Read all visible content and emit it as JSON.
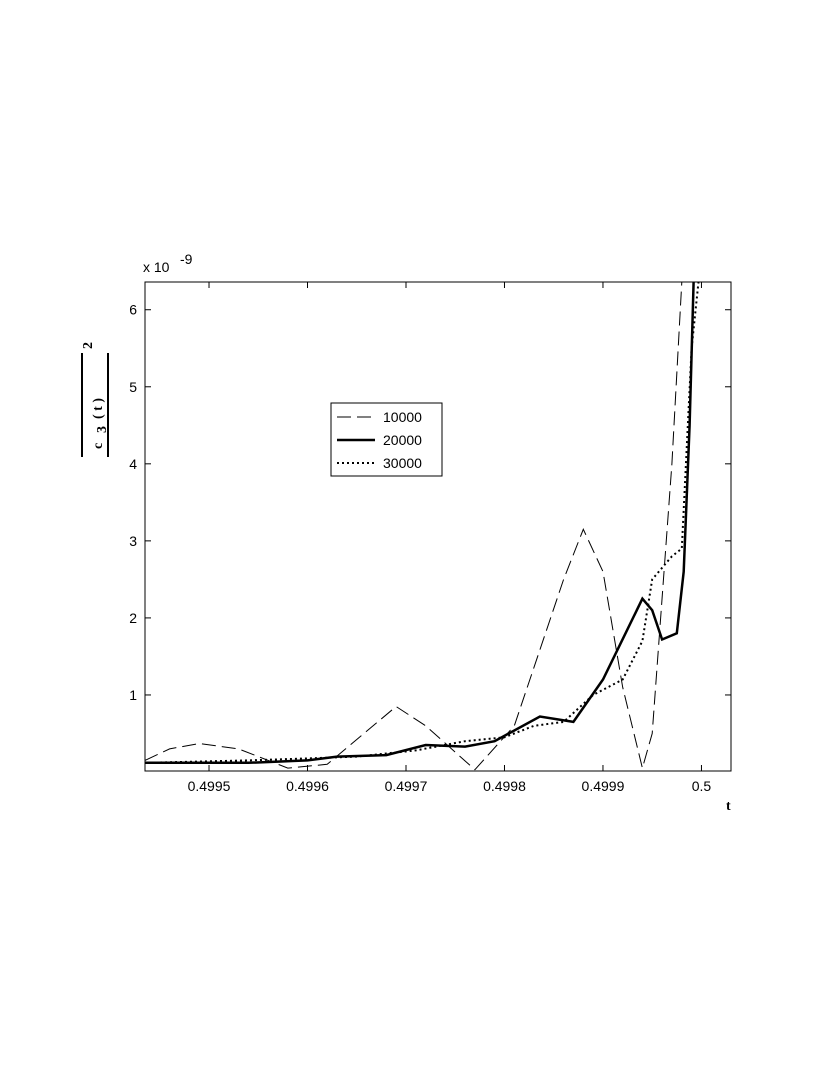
{
  "chart_data": {
    "type": "line",
    "ylabel": {
      "base": "c",
      "sub": "3",
      "arg": "( t )",
      "sup": "2"
    },
    "xlabel": "t",
    "multiplier": {
      "base": "x 10",
      "exp": "-9"
    },
    "xlim": [
      0.499435,
      0.50003
    ],
    "ylim": [
      0.013,
      6.36
    ],
    "xticks": [
      0.4995,
      0.4996,
      0.4997,
      0.4998,
      0.4999,
      0.5
    ],
    "yticks": [
      1,
      2,
      3,
      4,
      5,
      6
    ],
    "legend": "upper-center",
    "series": [
      {
        "name": "10000",
        "color": "#000000",
        "style": "dashed",
        "x": [
          0.499435,
          0.49946,
          0.49949,
          0.49953,
          0.49958,
          0.49962,
          0.49969,
          0.49972,
          0.49977,
          0.49981,
          0.49986,
          0.49988,
          0.4999,
          0.49992,
          0.49994,
          0.49995,
          0.49997,
          0.49998
        ],
        "values": [
          0.15,
          0.3,
          0.37,
          0.3,
          0.05,
          0.1,
          0.85,
          0.6,
          0.03,
          0.6,
          2.5,
          3.15,
          2.6,
          1.1,
          0.05,
          0.5,
          4,
          6.36
        ]
      },
      {
        "name": "20000",
        "color": "#000000",
        "style": "solid",
        "x": [
          0.499435,
          0.49954,
          0.4996,
          0.49963,
          0.49968,
          0.49972,
          0.49976,
          0.49979,
          0.499836,
          0.49987,
          0.4999,
          0.49994,
          0.49995,
          0.49996,
          0.499975,
          0.499982,
          0.499988,
          0.499992
        ],
        "values": [
          0.12,
          0.12,
          0.15,
          0.2,
          0.22,
          0.35,
          0.33,
          0.4,
          0.72,
          0.65,
          1.2,
          2.25,
          2.1,
          1.72,
          1.8,
          2.6,
          4.5,
          6.36
        ]
      },
      {
        "name": "30000",
        "color": "#000000",
        "style": "dotted",
        "x": [
          0.499435,
          0.49954,
          0.49961,
          0.49965,
          0.49971,
          0.49976,
          0.4998,
          0.49983,
          0.49986,
          0.49989,
          0.49992,
          0.49994,
          0.49995,
          0.49997,
          0.49998,
          0.49999,
          0.499997
        ],
        "values": [
          0.12,
          0.15,
          0.18,
          0.2,
          0.28,
          0.4,
          0.45,
          0.6,
          0.65,
          1.0,
          1.2,
          1.7,
          2.5,
          2.8,
          2.9,
          5.5,
          6.36
        ]
      }
    ]
  }
}
